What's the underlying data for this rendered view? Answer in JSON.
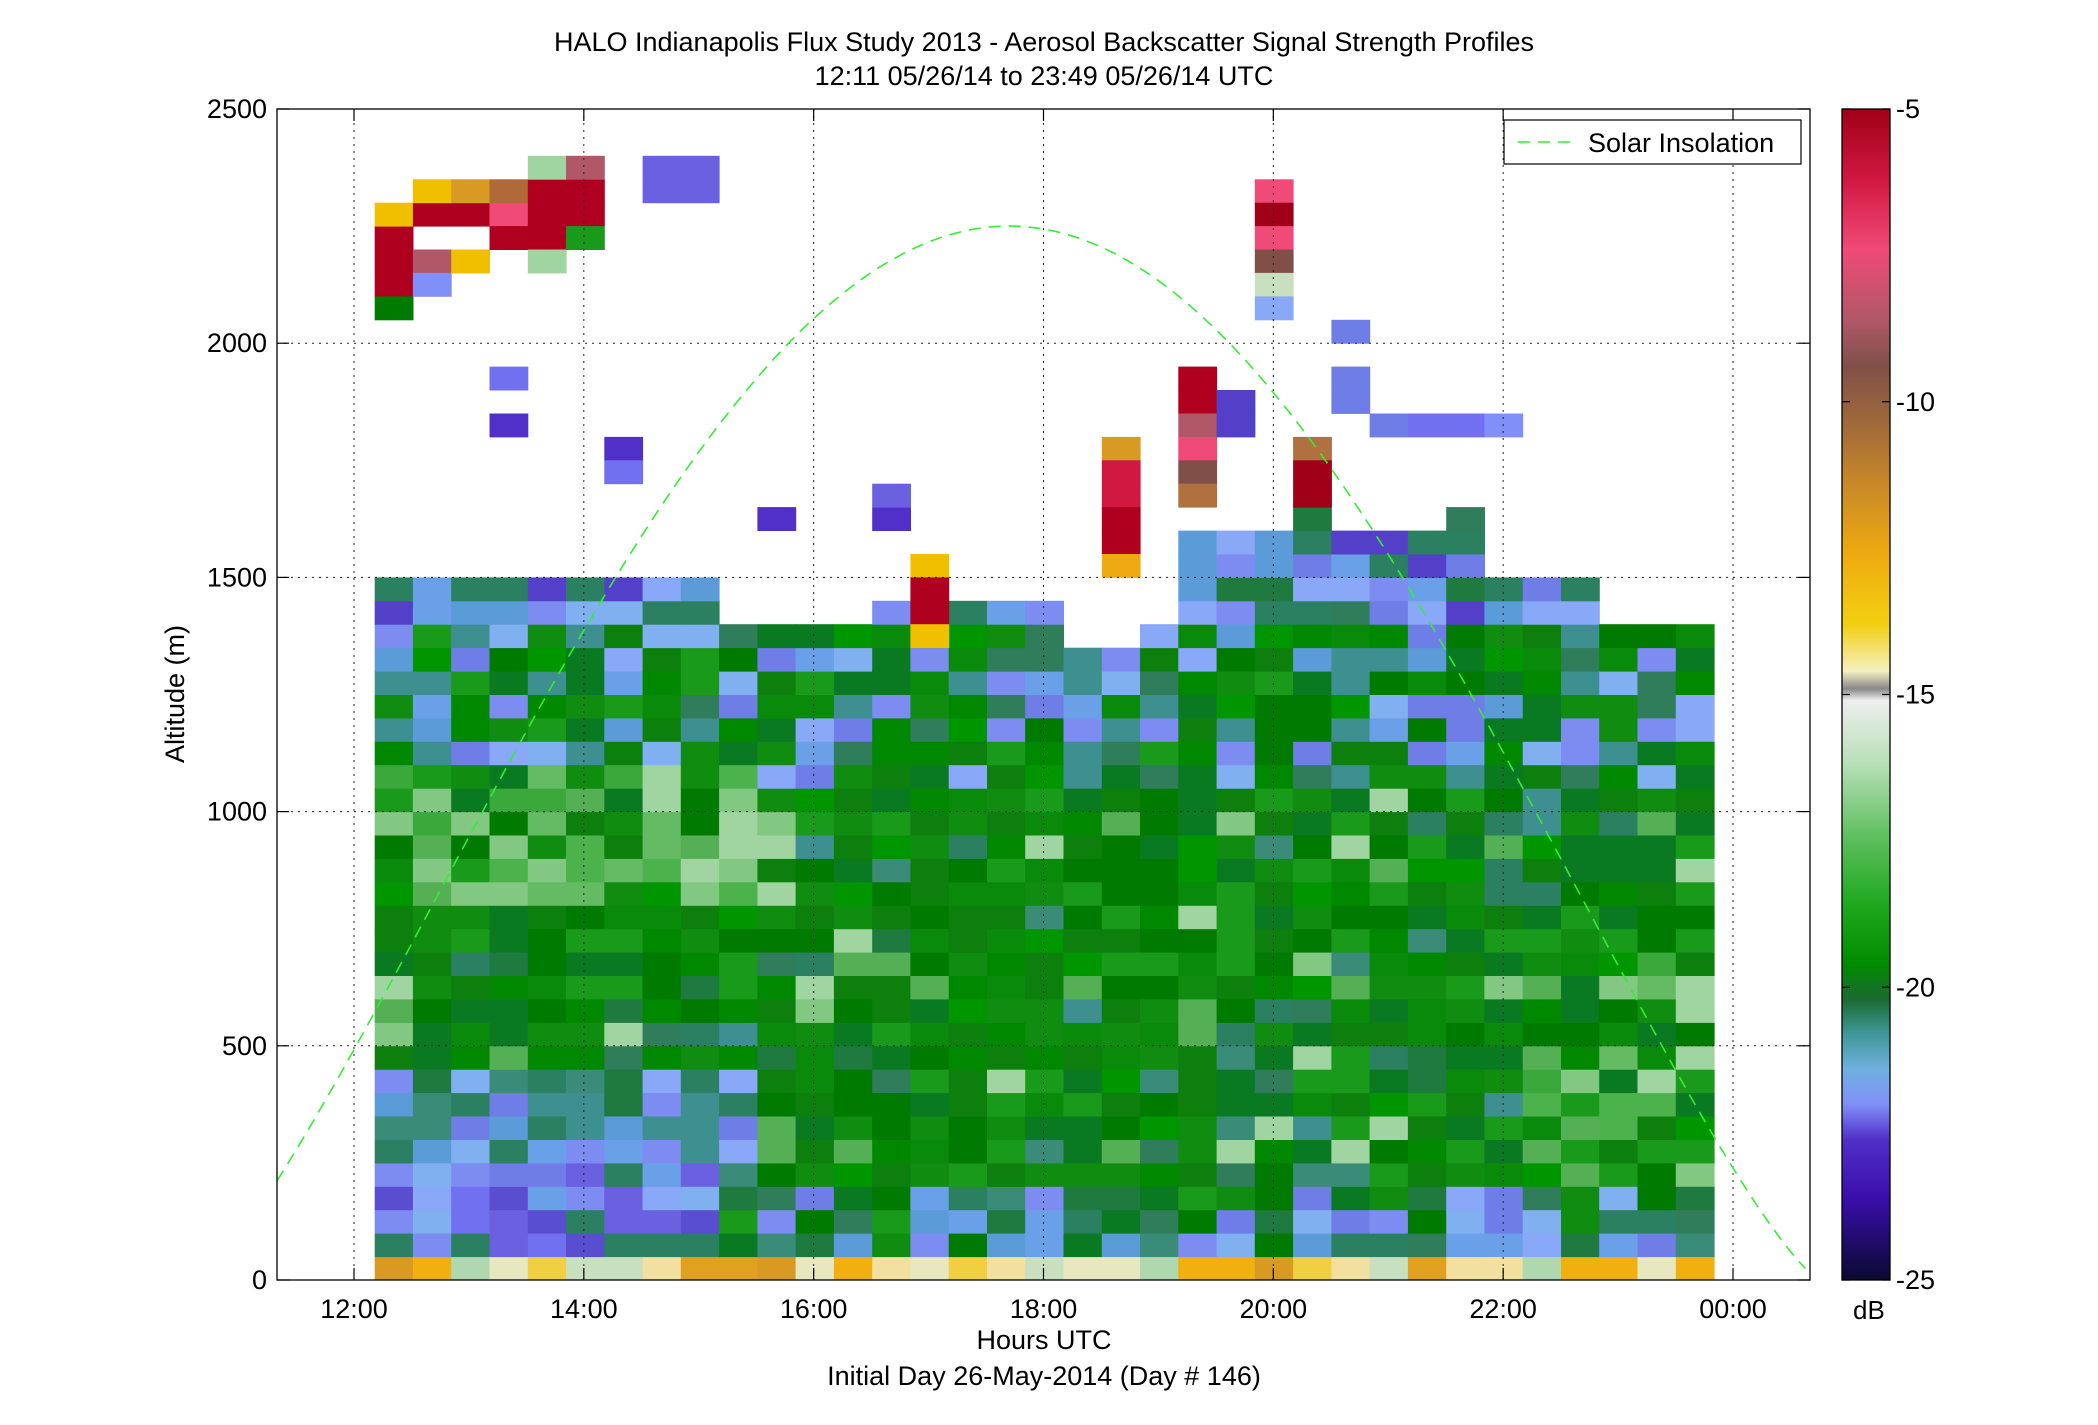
{
  "chart_data": {
    "type": "heatmap",
    "title": "HALO Indianapolis Flux Study 2013 - Aerosol Backscatter Signal Strength Profiles",
    "subtitle": "12:11 05/26/14 to 23:49 05/26/14  UTC",
    "xlabel": "Hours UTC",
    "ylabel": "Altitude (m)",
    "footer": "Initial Day 26-May-2014 (Day # 146)",
    "x_ticks": [
      "12:00",
      "14:00",
      "16:00",
      "18:00",
      "20:00",
      "22:00",
      "00:00"
    ],
    "x_tick_hours": [
      12,
      14,
      16,
      18,
      20,
      22,
      24
    ],
    "xlim_hours": [
      11.33,
      24.67
    ],
    "ylim": [
      0,
      2500
    ],
    "y_ticks": [
      0,
      500,
      1000,
      1500,
      2000,
      2500
    ],
    "grid": true,
    "legend": {
      "position": "top-right",
      "entries": [
        {
          "name": "Solar Insolation",
          "color": "#33ee33",
          "style": "dashed"
        }
      ]
    },
    "colorbar": {
      "label": "dB",
      "min": -25,
      "max": -5,
      "ticks": [
        "-5",
        "-10",
        "-15",
        "-20",
        "-25"
      ],
      "tick_values": [
        -5,
        -10,
        -15,
        -20,
        -25
      ]
    },
    "grid_cells": {
      "start_hour": 12.18,
      "hour_step": 0.333,
      "alt_step": 50,
      "columns": 35
    },
    "solar_insolation": {
      "peak_hour": 17.7,
      "peak_altitude": 2250,
      "points": [
        [
          11.4,
          420
        ],
        [
          12,
          760
        ],
        [
          13,
          1380
        ],
        [
          14,
          1820
        ],
        [
          15,
          2090
        ],
        [
          16,
          2210
        ],
        [
          17,
          2250
        ],
        [
          17.7,
          2250
        ],
        [
          18,
          2240
        ],
        [
          19,
          2130
        ],
        [
          20,
          1890
        ],
        [
          21,
          1540
        ],
        [
          22,
          1110
        ],
        [
          23,
          640
        ],
        [
          24,
          210
        ],
        [
          24.67,
          120
        ]
      ]
    }
  }
}
